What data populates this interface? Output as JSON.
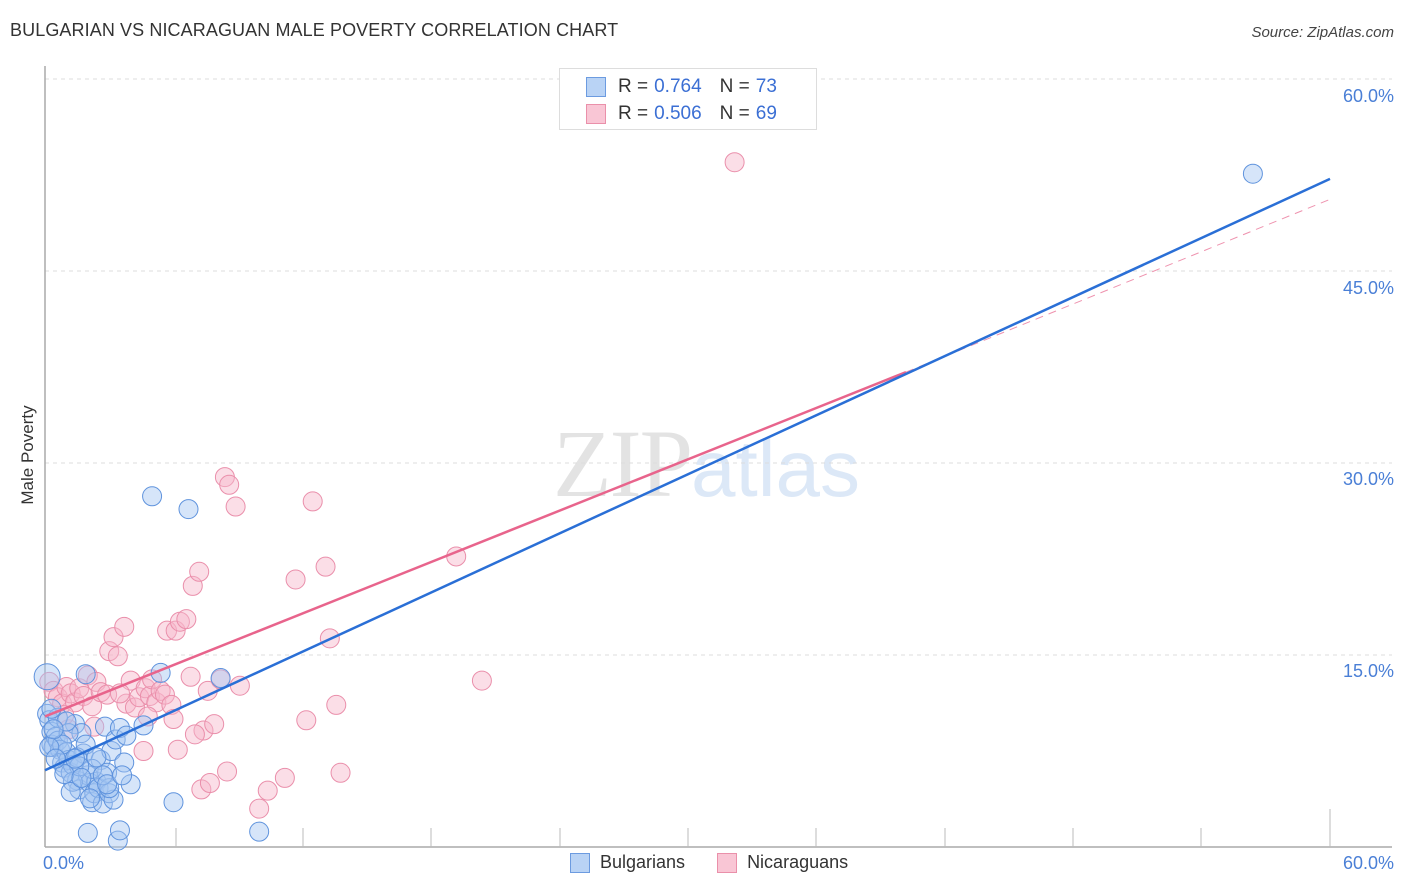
{
  "header": {
    "title": "BULGARIAN VS NICARAGUAN MALE POVERTY CORRELATION CHART",
    "source": "Source: ZipAtlas.com"
  },
  "watermark": {
    "zip": "ZIP",
    "atlas": "atlas"
  },
  "legend": {
    "rows": [
      {
        "r_label": "R =",
        "r_value": "0.764",
        "n_label": "N =",
        "n_value": "73",
        "fill": "#b9d3f5",
        "stroke": "#6c9be0"
      },
      {
        "r_label": "R =",
        "r_value": "0.506",
        "n_label": "N =",
        "n_value": "69",
        "fill": "#f9c6d5",
        "stroke": "#ea90aa"
      }
    ]
  },
  "axes": {
    "ylabel": "Male Poverty",
    "yticks": [
      "60.0%",
      "45.0%",
      "30.0%",
      "15.0%"
    ],
    "xtick_left": "0.0%",
    "xtick_right": "60.0%"
  },
  "bottom_legend": [
    {
      "label": "Bulgarians",
      "fill": "#b9d3f5",
      "stroke": "#6c9be0"
    },
    {
      "label": "Nicaraguans",
      "fill": "#f9c6d5",
      "stroke": "#ea90aa"
    }
  ],
  "colors": {
    "blue_line": "#2a6fd6",
    "pink_line": "#e8648c",
    "blue_fill": "rgba(164,198,242,0.45)",
    "blue_stroke": "#5f93dd",
    "pink_fill": "rgba(247,182,201,0.45)",
    "pink_stroke": "#ea8fab",
    "tick_label": "#4a7fd6"
  },
  "chart_data": {
    "type": "scatter",
    "title": "BULGARIAN VS NICARAGUAN MALE POVERTY CORRELATION CHART",
    "xlabel": "",
    "ylabel": "Male Poverty",
    "xlim": [
      0,
      60
    ],
    "ylim": [
      0,
      60
    ],
    "x_tick_labels": [
      "0.0%",
      "60.0%"
    ],
    "y_tick_labels": [
      "15.0%",
      "30.0%",
      "45.0%",
      "60.0%"
    ],
    "grid": "horizontal dashed",
    "legend_position": "top-center",
    "series": [
      {
        "name": "Bulgarians",
        "R": 0.764,
        "N": 73,
        "trend": {
          "x": [
            0,
            60
          ],
          "y": [
            6.0,
            52.2
          ]
        },
        "points": [
          [
            0.1,
            13.3
          ],
          [
            0.1,
            10.4
          ],
          [
            0.2,
            9.9
          ],
          [
            0.3,
            9.0
          ],
          [
            0.3,
            8.0
          ],
          [
            0.4,
            7.8
          ],
          [
            0.5,
            8.6
          ],
          [
            0.6,
            8.3
          ],
          [
            0.7,
            7.6
          ],
          [
            0.8,
            6.6
          ],
          [
            0.9,
            6.2
          ],
          [
            1.0,
            7.4
          ],
          [
            1.1,
            6.8
          ],
          [
            1.2,
            5.8
          ],
          [
            1.3,
            6.4
          ],
          [
            1.4,
            9.6
          ],
          [
            1.5,
            5.2
          ],
          [
            1.6,
            4.5
          ],
          [
            1.7,
            8.9
          ],
          [
            1.8,
            7.3
          ],
          [
            1.9,
            13.5
          ],
          [
            2.0,
            5.6
          ],
          [
            2.1,
            5.0
          ],
          [
            2.2,
            3.5
          ],
          [
            2.3,
            4.2
          ],
          [
            2.4,
            5.1
          ],
          [
            2.5,
            4.6
          ],
          [
            2.6,
            6.8
          ],
          [
            2.7,
            3.4
          ],
          [
            2.8,
            9.4
          ],
          [
            2.9,
            5.8
          ],
          [
            3.0,
            4.2
          ],
          [
            3.1,
            7.5
          ],
          [
            3.2,
            3.7
          ],
          [
            3.3,
            8.4
          ],
          [
            3.5,
            9.3
          ],
          [
            3.7,
            6.6
          ],
          [
            4.6,
            9.5
          ],
          [
            5.0,
            27.4
          ],
          [
            5.4,
            13.6
          ],
          [
            6.0,
            3.5
          ],
          [
            6.7,
            26.4
          ],
          [
            8.2,
            13.2
          ],
          [
            10.0,
            1.2
          ],
          [
            3.4,
            0.5
          ],
          [
            2.0,
            1.1
          ],
          [
            3.5,
            1.3
          ],
          [
            1.1,
            8.9
          ],
          [
            0.6,
            10.1
          ],
          [
            1.5,
            7.0
          ],
          [
            2.2,
            6.1
          ],
          [
            0.8,
            8.0
          ],
          [
            1.9,
            8.0
          ],
          [
            3.0,
            4.6
          ],
          [
            0.2,
            7.8
          ],
          [
            1.3,
            5.1
          ],
          [
            2.7,
            5.6
          ],
          [
            1.6,
            6.3
          ],
          [
            0.9,
            5.7
          ],
          [
            4.0,
            4.9
          ],
          [
            1.0,
            9.8
          ],
          [
            2.4,
            7.0
          ],
          [
            1.2,
            4.3
          ],
          [
            0.5,
            6.9
          ],
          [
            3.8,
            8.7
          ],
          [
            2.1,
            3.8
          ],
          [
            1.7,
            5.4
          ],
          [
            0.4,
            9.2
          ],
          [
            2.9,
            4.9
          ],
          [
            1.4,
            6.9
          ],
          [
            0.3,
            10.8
          ],
          [
            3.6,
            5.6
          ],
          [
            56.4,
            52.6
          ]
        ]
      },
      {
        "name": "Nicaraguans",
        "R": 0.506,
        "N": 69,
        "trend": {
          "x": [
            0,
            40.2
          ],
          "y": [
            10.2,
            37.1
          ],
          "dashed_extension": {
            "x": [
              40.2,
              60
            ],
            "y": [
              37.1,
              50.6
            ]
          }
        },
        "points": [
          [
            0.2,
            12.9
          ],
          [
            0.4,
            12.2
          ],
          [
            0.6,
            11.7
          ],
          [
            0.8,
            11.2
          ],
          [
            1.0,
            12.5
          ],
          [
            1.2,
            12.0
          ],
          [
            1.4,
            11.3
          ],
          [
            1.6,
            12.4
          ],
          [
            1.8,
            11.8
          ],
          [
            2.0,
            13.4
          ],
          [
            2.2,
            11.0
          ],
          [
            2.4,
            12.9
          ],
          [
            2.6,
            12.1
          ],
          [
            2.9,
            11.9
          ],
          [
            3.0,
            15.3
          ],
          [
            3.2,
            16.4
          ],
          [
            3.4,
            14.9
          ],
          [
            3.7,
            17.2
          ],
          [
            3.8,
            11.2
          ],
          [
            4.0,
            13.0
          ],
          [
            4.2,
            10.9
          ],
          [
            4.4,
            11.7
          ],
          [
            4.6,
            7.5
          ],
          [
            4.7,
            12.4
          ],
          [
            4.9,
            11.8
          ],
          [
            5.0,
            13.1
          ],
          [
            5.2,
            11.3
          ],
          [
            5.4,
            12.2
          ],
          [
            5.6,
            11.9
          ],
          [
            5.9,
            11.1
          ],
          [
            6.0,
            10.0
          ],
          [
            6.2,
            7.6
          ],
          [
            5.7,
            16.9
          ],
          [
            6.1,
            16.9
          ],
          [
            6.3,
            17.6
          ],
          [
            6.6,
            17.8
          ],
          [
            6.8,
            13.3
          ],
          [
            6.9,
            20.4
          ],
          [
            7.2,
            21.5
          ],
          [
            7.4,
            9.1
          ],
          [
            7.0,
            8.8
          ],
          [
            7.6,
            12.2
          ],
          [
            7.9,
            9.6
          ],
          [
            8.2,
            13.1
          ],
          [
            8.4,
            28.9
          ],
          [
            8.6,
            28.3
          ],
          [
            8.9,
            26.6
          ],
          [
            9.1,
            12.6
          ],
          [
            7.3,
            4.5
          ],
          [
            7.7,
            5.0
          ],
          [
            8.5,
            5.9
          ],
          [
            10.0,
            3.0
          ],
          [
            10.4,
            4.4
          ],
          [
            11.2,
            5.4
          ],
          [
            11.7,
            20.9
          ],
          [
            12.2,
            9.9
          ],
          [
            12.5,
            27.0
          ],
          [
            13.1,
            21.9
          ],
          [
            13.3,
            16.3
          ],
          [
            13.6,
            11.1
          ],
          [
            13.8,
            5.8
          ],
          [
            19.2,
            22.7
          ],
          [
            20.4,
            13.0
          ],
          [
            32.2,
            53.5
          ],
          [
            1.1,
            9.2
          ],
          [
            2.3,
            9.4
          ],
          [
            0.9,
            10.3
          ],
          [
            3.5,
            12.0
          ],
          [
            4.8,
            10.2
          ]
        ]
      }
    ]
  }
}
